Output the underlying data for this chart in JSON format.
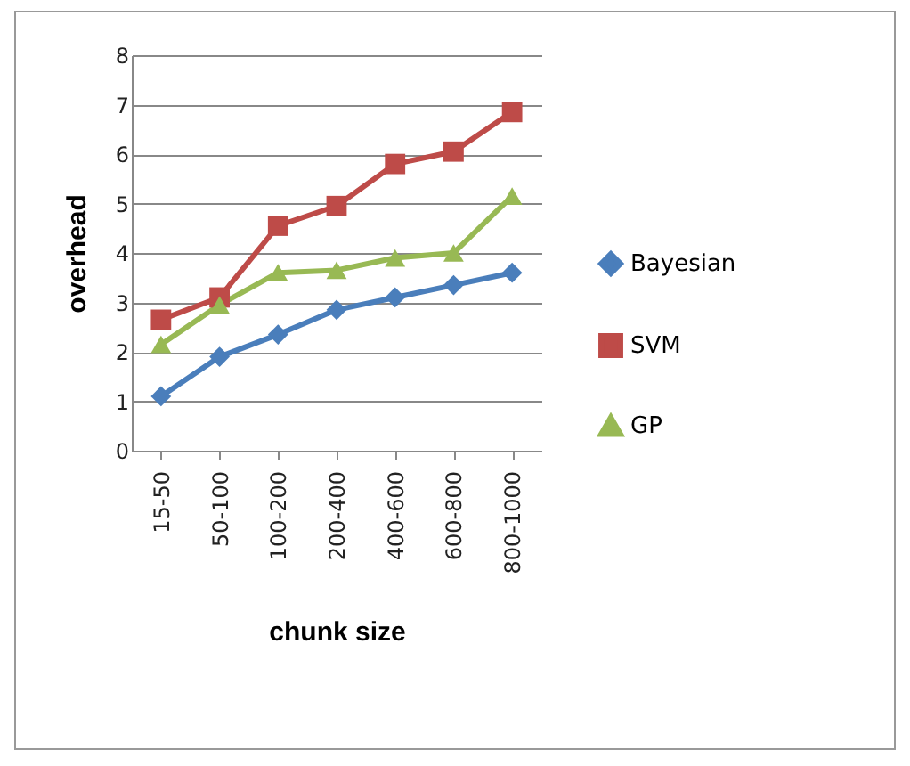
{
  "chart_data": {
    "type": "line",
    "xlabel": "chunk size",
    "ylabel": "overhead",
    "categories": [
      "15-50",
      "50-100",
      "100-200",
      "200-400",
      "400-600",
      "600-800",
      "800-1000"
    ],
    "series": [
      {
        "name": "Bayesian",
        "color": "#4a7ebb",
        "marker": "diamond",
        "values": [
          1.1,
          1.9,
          2.35,
          2.85,
          3.1,
          3.35,
          3.6
        ]
      },
      {
        "name": "SVM",
        "color": "#be4b48",
        "marker": "square",
        "values": [
          2.65,
          3.1,
          4.55,
          4.95,
          5.8,
          6.05,
          6.85
        ]
      },
      {
        "name": "GP",
        "color": "#98b954",
        "marker": "triangle",
        "values": [
          2.15,
          2.95,
          3.6,
          3.65,
          3.9,
          4.0,
          5.15
        ]
      }
    ],
    "ylim": [
      0,
      8
    ],
    "yticks": [
      0,
      1,
      2,
      3,
      4,
      5,
      6,
      7,
      8
    ],
    "grid": "y",
    "legend": "right",
    "line_style": "solid"
  }
}
